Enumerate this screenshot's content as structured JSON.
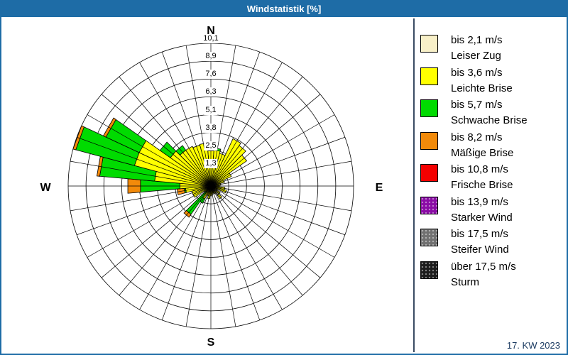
{
  "window": {
    "title": "Windstatistik [%]",
    "footer": "17. KW 2023"
  },
  "colors": {
    "titlebar": "#1E6CA6",
    "frame": "#1E6CA6",
    "grid": "#000000",
    "background": "#FFFFFF",
    "footer_text": "#17375E"
  },
  "chart_data": {
    "type": "windrose",
    "title": "Windstatistik [%]",
    "units": "%",
    "compass": {
      "n": "N",
      "e": "E",
      "s": "S",
      "w": "W"
    },
    "rings": [
      1.3,
      2.5,
      3.8,
      5.1,
      6.3,
      7.6,
      8.9,
      10.1
    ],
    "ring_labels": [
      "1,3",
      "2,5",
      "3,8",
      "5,1",
      "6,3",
      "7,6",
      "8,9",
      "10,1"
    ],
    "max": 10.1,
    "sector_width_deg": 10,
    "legend_position": "right",
    "speed_classes": [
      {
        "label": "bis 2,1 m/s",
        "name": "Leiser Zug",
        "color": "#F8F0C8",
        "dotted": false
      },
      {
        "label": "bis 3,6 m/s",
        "name": "Leichte Brise",
        "color": "#FFFF00",
        "dotted": false
      },
      {
        "label": "bis 5,7 m/s",
        "name": "Schwache Brise",
        "color": "#00DB00",
        "dotted": false
      },
      {
        "label": "bis 8,2 m/s",
        "name": "Mäßige Brise",
        "color": "#F28A0A",
        "dotted": false
      },
      {
        "label": "bis 10,8 m/s",
        "name": "Frische Brise",
        "color": "#F40000",
        "dotted": false
      },
      {
        "label": "bis 13,9 m/s",
        "name": "Starker Wind",
        "color": "#8A0BA5",
        "dotted": true
      },
      {
        "label": "bis 17,5 m/s",
        "name": "Steifer Wind",
        "color": "#707070",
        "dotted": true
      },
      {
        "label": "über 17,5 m/s",
        "name": "Sturm",
        "color": "#1C1C1C",
        "dotted": true
      }
    ],
    "directions_deg": [
      0,
      10,
      20,
      30,
      40,
      50,
      60,
      70,
      80,
      90,
      100,
      110,
      120,
      130,
      140,
      150,
      160,
      170,
      180,
      190,
      200,
      210,
      220,
      230,
      240,
      250,
      260,
      270,
      280,
      290,
      300,
      310,
      320,
      330,
      340,
      350
    ],
    "series": [
      {
        "name": "bis 2,1 m/s",
        "values": [
          0.3,
          0.3,
          0.3,
          0.3,
          0.3,
          0.3,
          0.4,
          0.4,
          0.3,
          0.3,
          0.3,
          0.3,
          0.3,
          0.5,
          0.8,
          0.4,
          0.3,
          0.3,
          0.3,
          0.4,
          0.3,
          0.3,
          0.2,
          0.3,
          0.3,
          0.3,
          0.2,
          0.3,
          0.3,
          0.3,
          0.3,
          0.3,
          0.3,
          0.3,
          0.3,
          0.3
        ]
      },
      {
        "name": "bis 3,6 m/s",
        "values": [
          2.2,
          2.25,
          2.1,
          3.4,
          3.2,
          2.8,
          1.2,
          0.6,
          0.4,
          0.3,
          0.7,
          0.85,
          0.2,
          0.3,
          0.3,
          0.2,
          0.2,
          0.3,
          0.4,
          0.5,
          0.4,
          0.7,
          0.3,
          0.3,
          1.1,
          1.1,
          1.6,
          1.9,
          3.7,
          5.3,
          5.3,
          3.2,
          2.8,
          2.8,
          2.7,
          2.75
        ]
      },
      {
        "name": "bis 5,7 m/s",
        "values": [
          0,
          0.15,
          0,
          0,
          0,
          0,
          0,
          0,
          0,
          0,
          0,
          0,
          0,
          0,
          0,
          0,
          0,
          0,
          0,
          0,
          0,
          0.35,
          1.95,
          0,
          0,
          0,
          0.1,
          2.8,
          3.9,
          4.3,
          2.6,
          0.9,
          0.4,
          0,
          0,
          0
        ]
      },
      {
        "name": "bis 8,2 m/s",
        "values": [
          0,
          0,
          0,
          0,
          0,
          0,
          0,
          0,
          0,
          0,
          0,
          0,
          0,
          0,
          0,
          0,
          0,
          0,
          0,
          0,
          0,
          0,
          0.25,
          0,
          0,
          0,
          0.5,
          0.9,
          0.2,
          0.2,
          0.2,
          0,
          0,
          0,
          0,
          0
        ]
      },
      {
        "name": "bis 10,8 m/s",
        "values": [
          0,
          0,
          0,
          0,
          0,
          0,
          0,
          0,
          0,
          0,
          0,
          0,
          0,
          0,
          0,
          0,
          0,
          0,
          0,
          0,
          0,
          0,
          0,
          0,
          0,
          0,
          0,
          0,
          0,
          0,
          0,
          0,
          0,
          0,
          0,
          0
        ]
      },
      {
        "name": "bis 13,9 m/s",
        "values": [
          0,
          0,
          0,
          0,
          0,
          0,
          0,
          0,
          0,
          0,
          0,
          0,
          0,
          0,
          0,
          0,
          0,
          0,
          0,
          0,
          0,
          0,
          0,
          0,
          0,
          0,
          0,
          0,
          0,
          0,
          0,
          0,
          0,
          0,
          0,
          0
        ]
      },
      {
        "name": "bis 17,5 m/s",
        "values": [
          0,
          0,
          0,
          0,
          0,
          0,
          0,
          0,
          0,
          0,
          0,
          0,
          0,
          0,
          0,
          0,
          0,
          0,
          0,
          0,
          0,
          0,
          0,
          0,
          0,
          0,
          0,
          0,
          0,
          0,
          0,
          0,
          0,
          0,
          0,
          0
        ]
      },
      {
        "name": "über 17,5 m/s",
        "values": [
          0,
          0,
          0,
          0,
          0,
          0,
          0,
          0,
          0,
          0,
          0,
          0,
          0,
          0,
          0,
          0,
          0,
          0,
          0,
          0,
          0,
          0,
          0,
          0,
          0,
          0,
          0,
          0,
          0,
          0,
          0,
          0,
          0,
          0,
          0,
          0
        ]
      }
    ]
  }
}
